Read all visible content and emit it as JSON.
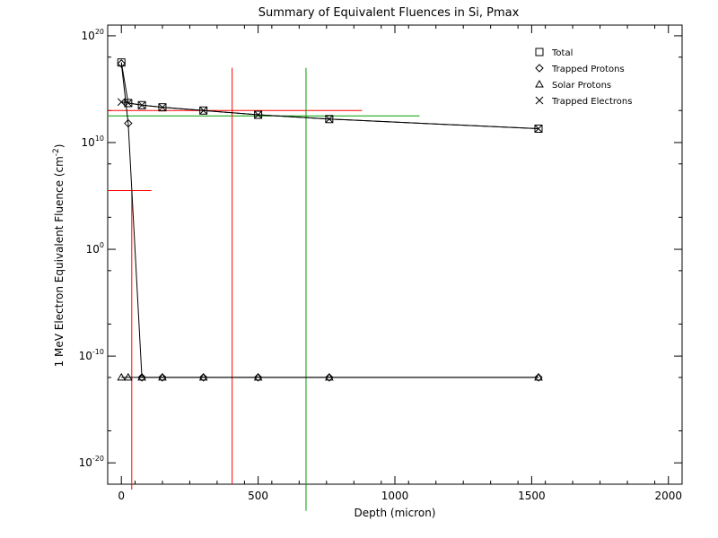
{
  "chart_data": {
    "type": "scatter",
    "title": "Summary of Equivalent Fluences in Si, Pmax",
    "xlabel": "Depth (micron)",
    "ylabel_main": "1 MeV Electron Equivalent Fluence (cm",
    "ylabel_sup": "-2",
    "ylabel_end": ")",
    "x_range": [
      -50,
      2050
    ],
    "y_log_range": [
      -22,
      21
    ],
    "y_scale": "log",
    "x_ticks": [
      0,
      500,
      1000,
      1500,
      2000
    ],
    "x_tick_labels": [
      "0",
      "500",
      "1000",
      "1500",
      "2000"
    ],
    "y_ticks": [
      {
        "exp": 20,
        "base": "10",
        "sup": "20"
      },
      {
        "exp": 10,
        "base": "10",
        "sup": "10"
      },
      {
        "exp": 0,
        "base": "10",
        "sup": "0"
      },
      {
        "exp": -10,
        "base": "10",
        "sup": "-10"
      },
      {
        "exp": -20,
        "base": "10",
        "sup": "-20"
      }
    ],
    "legend_position": "top-right",
    "series": [
      {
        "name": "Total",
        "marker": "square",
        "x": [
          0,
          25,
          75,
          150,
          300,
          500,
          760,
          1525
        ],
        "log_y": [
          17.5,
          13.7,
          13.5,
          13.3,
          13.0,
          12.6,
          12.2,
          11.3
        ]
      },
      {
        "name": "Trapped Protons",
        "marker": "diamond",
        "x": [
          0,
          25,
          75,
          150,
          300,
          500,
          760,
          1525
        ],
        "log_y": [
          17.4,
          11.8,
          -12,
          -12,
          -12,
          -12,
          -12,
          -12
        ]
      },
      {
        "name": "Solar Protons",
        "marker": "triangle",
        "x": [
          0,
          25,
          75,
          150,
          300,
          500,
          760,
          1525
        ],
        "log_y": [
          -12,
          -12,
          -12,
          -12,
          -12,
          -12,
          -12,
          -12
        ]
      },
      {
        "name": "Trapped Electrons",
        "marker": "x",
        "x": [
          0,
          25,
          75,
          150,
          300,
          500,
          760,
          1525
        ],
        "log_y": [
          13.8,
          13.7,
          13.5,
          13.3,
          13.0,
          12.6,
          12.2,
          11.3
        ]
      }
    ],
    "reference_lines": [
      {
        "color": "#ff0000",
        "orientation": "horizontal",
        "x_from": -50,
        "x_to": 880,
        "log_y": 13.0
      },
      {
        "color": "#00a000",
        "orientation": "horizontal",
        "x_from": -50,
        "x_to": 1090,
        "log_y": 12.5
      },
      {
        "color": "#ff0000",
        "orientation": "horizontal",
        "x_from": -50,
        "x_to": 110,
        "log_y": 5.5
      },
      {
        "color": "#ff0000",
        "orientation": "vertical",
        "x": 38,
        "log_y_from": -22.5,
        "log_y_to": 5.5
      },
      {
        "color": "#ff0000",
        "orientation": "vertical",
        "x": 405,
        "log_y_from": -22,
        "log_y_to": 17.0
      },
      {
        "color": "#00a000",
        "orientation": "vertical",
        "x": 675,
        "log_y_from": -24.5,
        "log_y_to": 17.0
      }
    ]
  }
}
